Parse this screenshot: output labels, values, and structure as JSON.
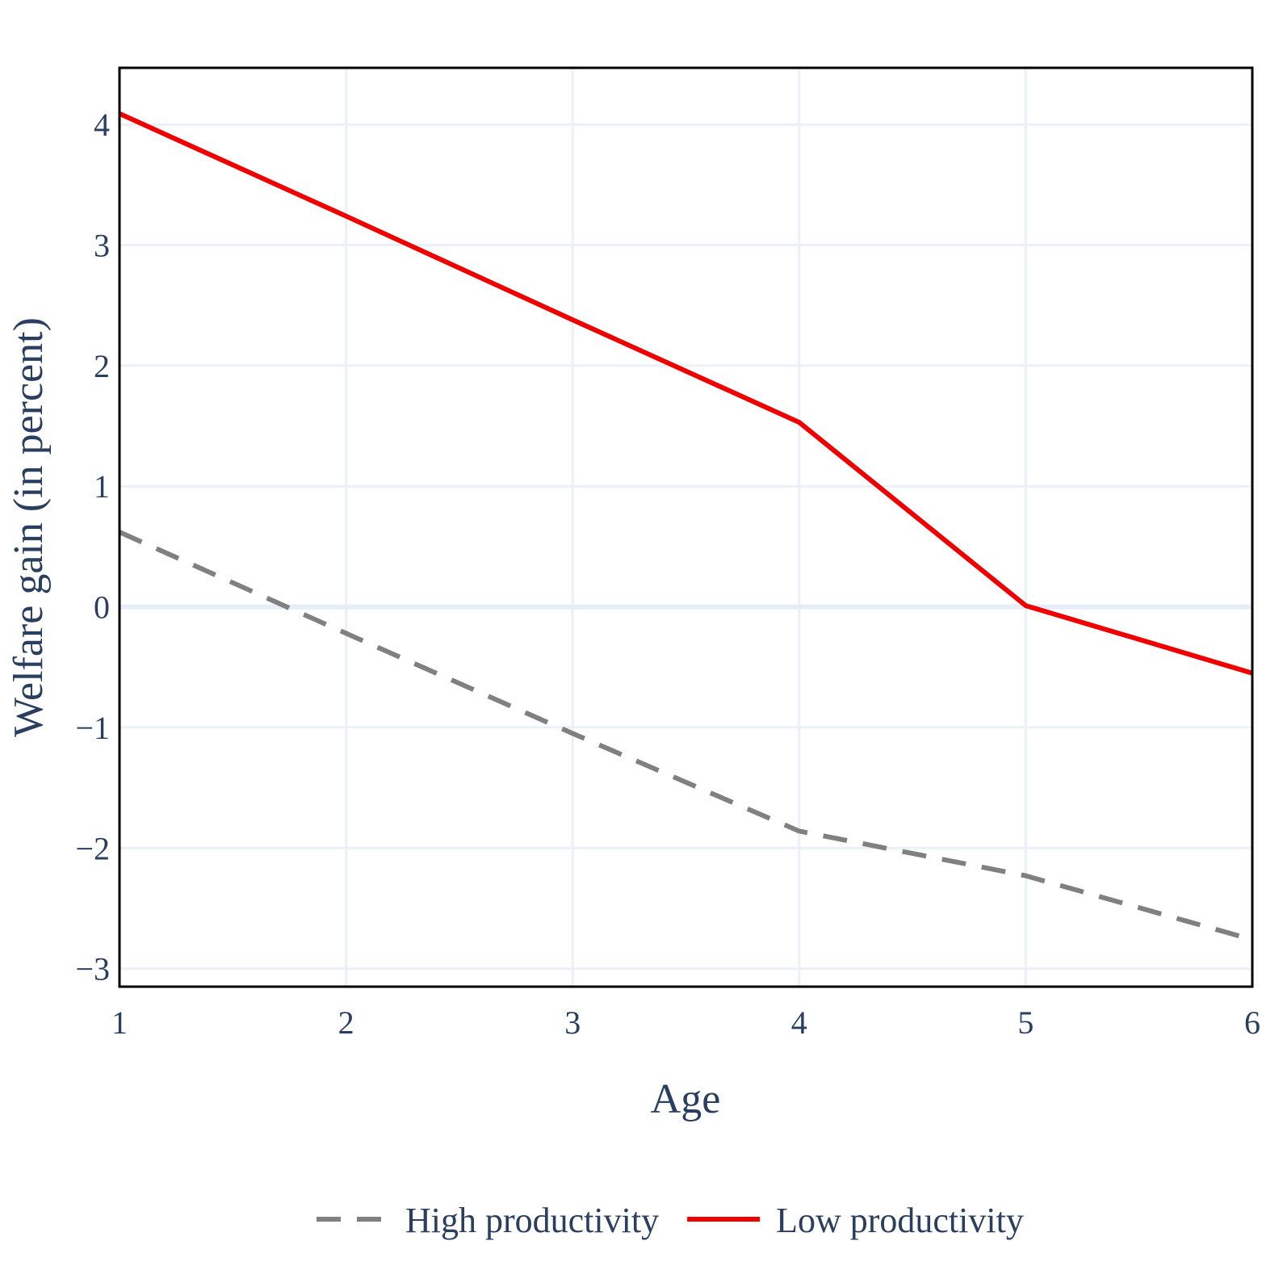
{
  "chart_data": {
    "type": "line",
    "xlabel": "Age",
    "ylabel": "Welfare gain (in percent)",
    "xlim": [
      1,
      6
    ],
    "ylim": [
      -3.15,
      4.47
    ],
    "x_ticks": [
      1,
      2,
      3,
      4,
      5,
      6
    ],
    "y_ticks": [
      -3,
      -2,
      -1,
      0,
      1,
      2,
      3,
      4
    ],
    "y_tick_labels": [
      "−3",
      "−2",
      "−1",
      "0",
      "1",
      "2",
      "3",
      "4"
    ],
    "grid": true,
    "legend_position": "bottom-center",
    "x": [
      1,
      2,
      3,
      4,
      5,
      6
    ],
    "series": [
      {
        "name": "High productivity",
        "values": [
          0.62,
          -0.22,
          -1.05,
          -1.86,
          -2.23,
          -2.76
        ],
        "color": "#808080",
        "dash": "dashed"
      },
      {
        "name": "Low productivity",
        "values": [
          4.09,
          3.24,
          2.38,
          1.53,
          0.01,
          -0.55
        ],
        "color": "#ee0000",
        "dash": "solid"
      }
    ]
  }
}
